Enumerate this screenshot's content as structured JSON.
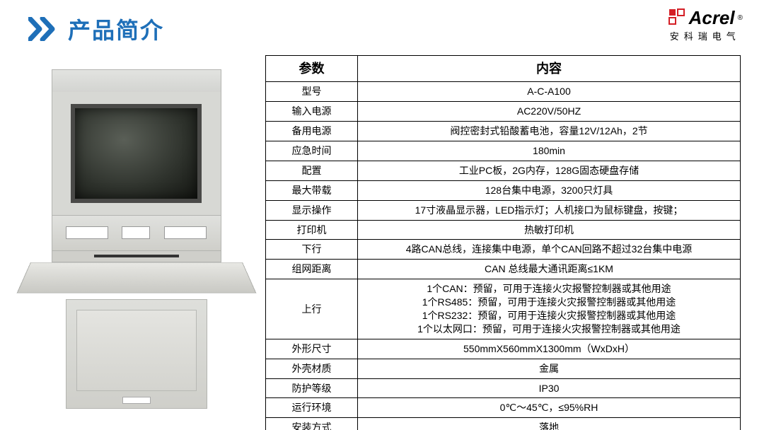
{
  "header": {
    "title": "产品简介",
    "title_color": "#1e6fb8",
    "chevron_color": "#1e6fb8"
  },
  "logo": {
    "name": "Acrel",
    "sub": "安科瑞电气",
    "mark_color": "#d41f26"
  },
  "spec_table": {
    "columns": [
      "参数",
      "内容"
    ],
    "rows": [
      [
        "型号",
        "A-C-A100"
      ],
      [
        "输入电源",
        "AC220V/50HZ"
      ],
      [
        "备用电源",
        "阀控密封式铅酸蓄电池，容量12V/12Ah，2节"
      ],
      [
        "应急时间",
        "180min"
      ],
      [
        "配置",
        "工业PC板，2G内存，128G固态硬盘存储"
      ],
      [
        "最大带载",
        "128台集中电源，3200只灯具"
      ],
      [
        "显示操作",
        "17寸液晶显示器，LED指示灯；人机接口为鼠标键盘，按键；"
      ],
      [
        "打印机",
        "热敏打印机"
      ],
      [
        "下行",
        "4路CAN总线，连接集中电源，单个CAN回路不超过32台集中电源"
      ],
      [
        "组网距离",
        "CAN 总线最大通讯距离≤1KM"
      ],
      [
        "上行",
        "1个CAN：预留，可用于连接火灾报警控制器或其他用途\n1个RS485：预留，可用于连接火灾报警控制器或其他用途\n1个RS232：预留，可用于连接火灾报警控制器或其他用途\n1个以太网口：预留，可用于连接火灾报警控制器或其他用途"
      ],
      [
        "外形尺寸",
        "550mmX560mmX1300mm（WxDxH）"
      ],
      [
        "外壳材质",
        "金属"
      ],
      [
        "防护等级",
        "IP30"
      ],
      [
        "运行环境",
        "0℃～45℃，≤95%RH"
      ],
      [
        "安装方式",
        "落地"
      ]
    ],
    "border_color": "#000000",
    "header_fontsize": 18,
    "cell_fontsize": 14
  },
  "colors": {
    "background": "#ffffff",
    "text": "#000000"
  }
}
